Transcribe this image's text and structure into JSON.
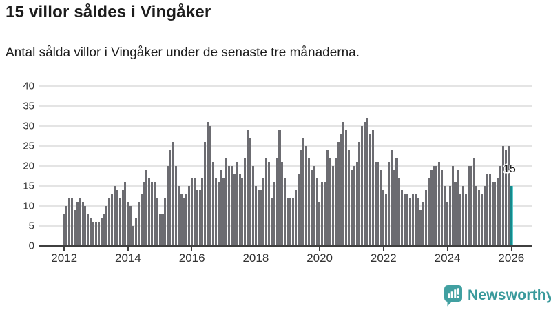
{
  "title": "15 villor såldes i Vingåker",
  "subtitle": "Antal sålda villor i Vingåker under de senaste tre månaderna.",
  "branding": {
    "logo_text": "Newsworthy",
    "logo_icon": "bar-chart-speech-bubble-icon"
  },
  "colors": {
    "bar": "#6c6c71",
    "highlight_bar": "#17898c",
    "grid": "#e4e4e4",
    "axis": "#3f3f3f",
    "text": "#1c1c1c",
    "tick_label": "#333333",
    "brand_teal": "#3a9a9c"
  },
  "chart_data": {
    "type": "bar",
    "title": "15 villor såldes i Vingåker",
    "subtitle": "Antal sålda villor i Vingåker under de senaste tre månaderna.",
    "frequency": "monthly",
    "x_start": "2012-01",
    "x_end": "2026-01",
    "xlabel": "",
    "ylabel": "",
    "ylim": [
      0,
      40
    ],
    "yticks": [
      0,
      5,
      10,
      15,
      20,
      25,
      30,
      35,
      40
    ],
    "xticks": [
      "2012",
      "2014",
      "2016",
      "2018",
      "2020",
      "2022",
      "2024",
      "2026"
    ],
    "grid": true,
    "legend": false,
    "highlight_last_bar": true,
    "last_value_label": "15",
    "values": [
      8,
      10,
      12,
      12,
      9,
      11,
      12,
      11,
      10,
      8,
      7,
      6,
      6,
      6,
      7,
      8,
      10,
      12,
      13,
      15,
      14,
      12,
      14,
      16,
      11,
      10,
      5,
      7,
      11,
      13,
      16,
      19,
      17,
      16,
      16,
      12,
      8,
      8,
      12,
      20,
      24,
      26,
      20,
      15,
      13,
      12,
      13,
      15,
      17,
      17,
      14,
      14,
      17,
      26,
      31,
      30,
      21,
      17,
      16,
      19,
      17,
      22,
      20,
      20,
      18,
      21,
      18,
      17,
      22,
      29,
      27,
      20,
      15,
      14,
      14,
      17,
      22,
      21,
      12,
      16,
      22,
      29,
      21,
      17,
      12,
      12,
      12,
      14,
      18,
      24,
      27,
      25,
      22,
      19,
      20,
      17,
      11,
      16,
      16,
      24,
      22,
      20,
      22,
      26,
      28,
      31,
      29,
      24,
      19,
      20,
      21,
      26,
      30,
      31,
      32,
      28,
      29,
      21,
      21,
      19,
      14,
      13,
      21,
      24,
      19,
      22,
      17,
      14,
      13,
      13,
      12,
      13,
      13,
      12,
      9,
      11,
      14,
      17,
      19,
      20,
      20,
      21,
      19,
      15,
      11,
      15,
      20,
      16,
      19,
      13,
      15,
      13,
      20,
      20,
      22,
      15,
      14,
      13,
      15,
      18,
      18,
      16,
      16,
      17,
      20,
      25,
      24,
      25,
      15
    ]
  }
}
